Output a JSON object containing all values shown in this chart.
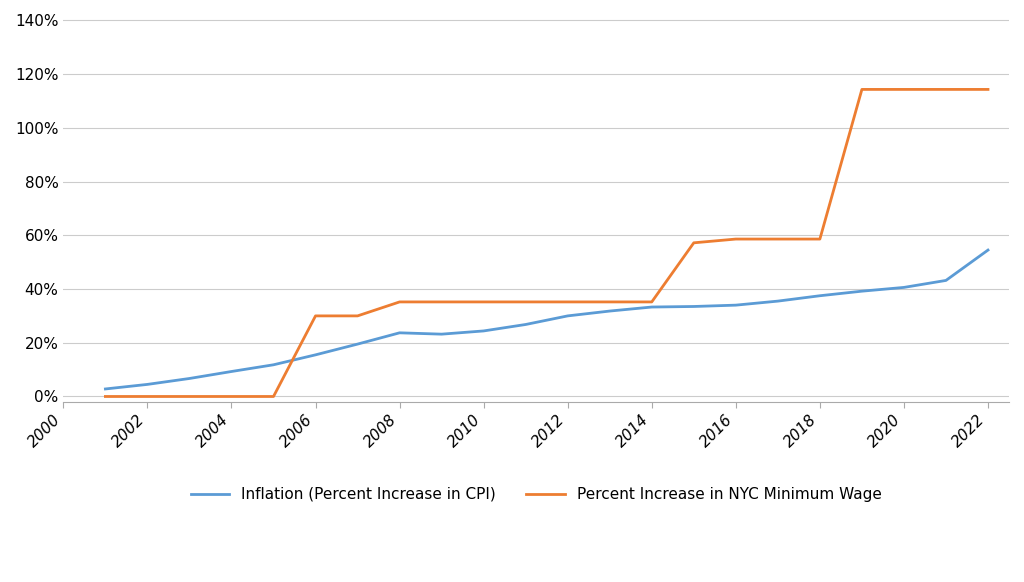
{
  "inflation_years": [
    2001,
    2002,
    2003,
    2004,
    2005,
    2006,
    2007,
    2008,
    2009,
    2010,
    2011,
    2012,
    2013,
    2014,
    2015,
    2016,
    2017,
    2018,
    2019,
    2020,
    2021,
    2022
  ],
  "inflation_values": [
    0.028,
    0.045,
    0.067,
    0.093,
    0.118,
    0.155,
    0.195,
    0.237,
    0.232,
    0.244,
    0.268,
    0.3,
    0.318,
    0.333,
    0.335,
    0.34,
    0.355,
    0.375,
    0.392,
    0.406,
    0.432,
    0.545
  ],
  "minwage_years": [
    2001,
    2002,
    2003,
    2004,
    2005,
    2006,
    2007,
    2008,
    2009,
    2010,
    2011,
    2012,
    2013,
    2014,
    2015,
    2016,
    2017,
    2018,
    2019,
    2020,
    2021,
    2022
  ],
  "minwage_values": [
    0.0,
    0.0,
    0.0,
    0.0,
    0.0,
    0.3,
    0.3,
    0.352,
    0.352,
    0.352,
    0.352,
    0.352,
    0.352,
    0.352,
    0.572,
    0.586,
    0.586,
    0.586,
    1.143,
    1.143,
    1.143,
    1.143
  ],
  "inflation_color": "#5b9bd5",
  "minwage_color": "#ed7d31",
  "ylim": [
    -0.02,
    1.42
  ],
  "yticks": [
    0.0,
    0.2,
    0.4,
    0.6,
    0.8,
    1.0,
    1.2,
    1.4
  ],
  "ytick_labels": [
    "0%",
    "20%",
    "40%",
    "60%",
    "80%",
    "100%",
    "120%",
    "140%"
  ],
  "xlim": [
    2000,
    2022.5
  ],
  "xticks": [
    2000,
    2002,
    2004,
    2006,
    2008,
    2010,
    2012,
    2014,
    2016,
    2018,
    2020,
    2022
  ],
  "legend_label_inflation": "Inflation (Percent Increase in CPI)",
  "legend_label_minwage": "Percent Increase in NYC Minimum Wage",
  "line_width": 2.0,
  "background_color": "#ffffff",
  "grid_color": "#cccccc"
}
